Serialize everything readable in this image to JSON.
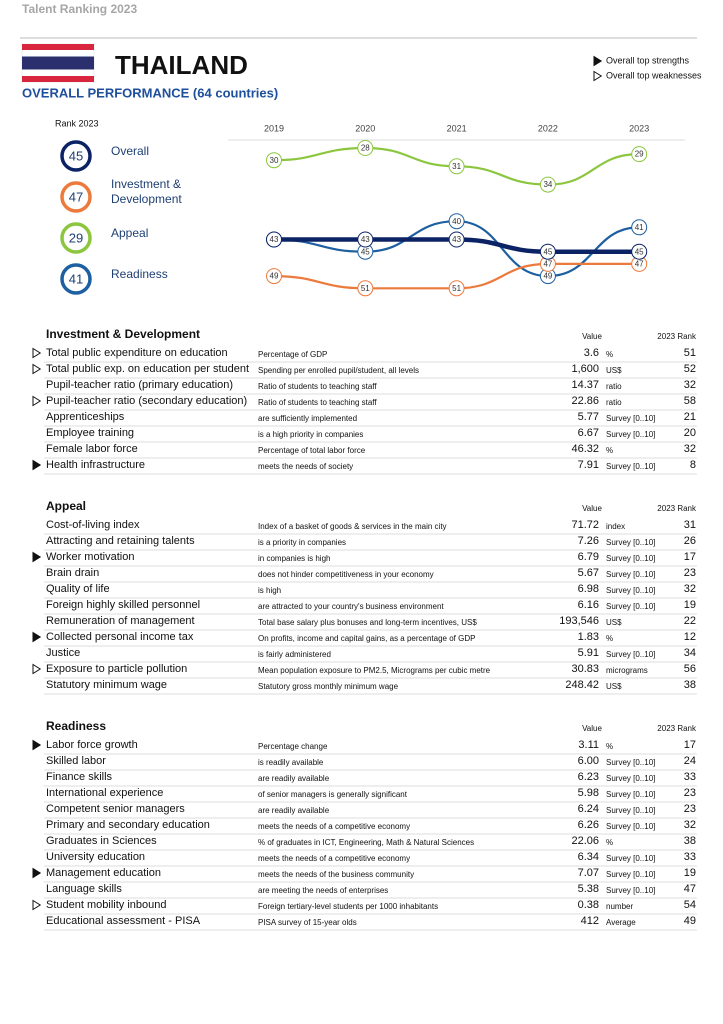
{
  "header": {
    "report": "Talent Ranking  2023",
    "country": "THAILAND",
    "subtitle": "OVERALL PERFORMANCE  (64 countries)",
    "legend": [
      {
        "marker": "strength",
        "label": "Overall top strengths"
      },
      {
        "marker": "weakness",
        "label": "Overall top weaknesses"
      }
    ]
  },
  "chart_data": {
    "type": "line",
    "legend_title": "Rank 2023",
    "x": [
      "2019",
      "2020",
      "2021",
      "2022",
      "2023"
    ],
    "y_inverted": true,
    "series": [
      {
        "name": "Overall",
        "color": "#0b2265",
        "values": [
          43,
          43,
          43,
          45,
          45
        ]
      },
      {
        "name": "Investment & Development",
        "color": "#ec7a3c",
        "values": [
          49,
          51,
          51,
          47,
          47
        ]
      },
      {
        "name": "Appeal",
        "color": "#8cc63f",
        "values": [
          30,
          28,
          31,
          34,
          29
        ]
      },
      {
        "name": "Readiness",
        "color": "#1d5fa0",
        "values": [
          43,
          45,
          40,
          49,
          41
        ]
      }
    ]
  },
  "columns": {
    "value": "Value",
    "rank": "2023 Rank"
  },
  "sections": [
    {
      "title": "Investment & Development",
      "rows": [
        {
          "marker": "weakness",
          "name": "Total public expenditure on education",
          "desc": "Percentage of GDP",
          "value": "3.6",
          "unit": "%",
          "rank": "51"
        },
        {
          "marker": "weakness",
          "name": "Total public exp. on education per student",
          "desc": "Spending per enrolled pupil/student, all levels",
          "value": "1,600",
          "unit": "US$",
          "rank": "52"
        },
        {
          "name": "Pupil-teacher ratio (primary education)",
          "desc": "Ratio of students to teaching staff",
          "value": "14.37",
          "unit": "ratio",
          "rank": "32"
        },
        {
          "marker": "weakness",
          "name": "Pupil-teacher ratio (secondary education)",
          "desc": "Ratio of students to teaching staff",
          "value": "22.86",
          "unit": "ratio",
          "rank": "58"
        },
        {
          "name": "Apprenticeships",
          "desc": "are sufficiently implemented",
          "value": "5.77",
          "unit": "Survey [0..10]",
          "rank": "21"
        },
        {
          "name": "Employee training",
          "desc": "is a high priority in companies",
          "value": "6.67",
          "unit": "Survey [0..10]",
          "rank": "20"
        },
        {
          "name": "Female labor force",
          "desc": "Percentage of total labor force",
          "value": "46.32",
          "unit": "%",
          "rank": "32"
        },
        {
          "marker": "strength",
          "name": "Health infrastructure",
          "desc": "meets the needs of society",
          "value": "7.91",
          "unit": "Survey [0..10]",
          "rank": "8"
        }
      ]
    },
    {
      "title": "Appeal",
      "rows": [
        {
          "name": "Cost-of-living index",
          "desc": "Index of a basket of goods & services in the main city",
          "value": "71.72",
          "unit": "index",
          "rank": "31"
        },
        {
          "name": "Attracting and retaining talents",
          "desc": "is a priority in companies",
          "value": "7.26",
          "unit": "Survey [0..10]",
          "rank": "26"
        },
        {
          "marker": "strength",
          "name": "Worker motivation",
          "desc": "in companies is high",
          "value": "6.79",
          "unit": "Survey [0..10]",
          "rank": "17"
        },
        {
          "name": "Brain drain",
          "desc": "does not hinder competitiveness in your economy",
          "value": "5.67",
          "unit": "Survey [0..10]",
          "rank": "23"
        },
        {
          "name": "Quality of life",
          "desc": "is high",
          "value": "6.98",
          "unit": "Survey [0..10]",
          "rank": "32"
        },
        {
          "name": "Foreign highly skilled personnel",
          "desc": "are attracted to your country's business environment",
          "value": "6.16",
          "unit": "Survey [0..10]",
          "rank": "19"
        },
        {
          "name": "Remuneration of management",
          "desc": "Total base salary plus bonuses and long-term incentives, US$",
          "value": "193,546",
          "unit": "US$",
          "rank": "22"
        },
        {
          "marker": "strength",
          "name": "Collected personal income tax",
          "desc": "On profits, income and capital gains, as a percentage of GDP",
          "value": "1.83",
          "unit": "%",
          "rank": "12"
        },
        {
          "name": "Justice",
          "desc": "is fairly administered",
          "value": "5.91",
          "unit": "Survey [0..10]",
          "rank": "34"
        },
        {
          "marker": "weakness",
          "name": "Exposure to particle pollution",
          "desc": "Mean population exposure to PM2.5, Micrograms per cubic metre",
          "value": "30.83",
          "unit": "micrograms",
          "rank": "56"
        },
        {
          "name": "Statutory minimum wage",
          "desc": "Statutory gross monthly minimum wage",
          "value": "248.42",
          "unit": "US$",
          "rank": "38"
        }
      ]
    },
    {
      "title": "Readiness",
      "rows": [
        {
          "marker": "strength",
          "name": "Labor force growth",
          "desc": "Percentage change",
          "value": "3.11",
          "unit": "%",
          "rank": "17"
        },
        {
          "name": "Skilled labor",
          "desc": "is readily available",
          "value": "6.00",
          "unit": "Survey [0..10]",
          "rank": "24"
        },
        {
          "name": "Finance skills",
          "desc": "are readily available",
          "value": "6.23",
          "unit": "Survey [0..10]",
          "rank": "33"
        },
        {
          "name": "International experience",
          "desc": "of senior managers is generally significant",
          "value": "5.98",
          "unit": "Survey [0..10]",
          "rank": "23"
        },
        {
          "name": "Competent senior managers",
          "desc": "are readily available",
          "value": "6.24",
          "unit": "Survey [0..10]",
          "rank": "23"
        },
        {
          "name": "Primary and secondary education",
          "desc": "meets the needs of a competitive economy",
          "value": "6.26",
          "unit": "Survey [0..10]",
          "rank": "32"
        },
        {
          "name": "Graduates in Sciences",
          "desc": "% of graduates in ICT, Engineering, Math & Natural Sciences",
          "value": "22.06",
          "unit": "%",
          "rank": "38"
        },
        {
          "name": "University education",
          "desc": "meets the needs of a competitive economy",
          "value": "6.34",
          "unit": "Survey [0..10]",
          "rank": "33"
        },
        {
          "marker": "strength",
          "name": "Management education",
          "desc": "meets the needs of the business community",
          "value": "7.07",
          "unit": "Survey [0..10]",
          "rank": "19"
        },
        {
          "name": "Language skills",
          "desc": "are meeting the needs of enterprises",
          "value": "5.38",
          "unit": "Survey [0..10]",
          "rank": "47"
        },
        {
          "marker": "weakness",
          "name": "Student mobility inbound",
          "desc": "Foreign tertiary-level students per 1000 inhabitants",
          "value": "0.38",
          "unit": "number",
          "rank": "54"
        },
        {
          "name": "Educational assessment - PISA",
          "desc": "PISA survey of 15-year olds",
          "value": "412",
          "unit": "Average",
          "rank": "49"
        }
      ]
    }
  ]
}
